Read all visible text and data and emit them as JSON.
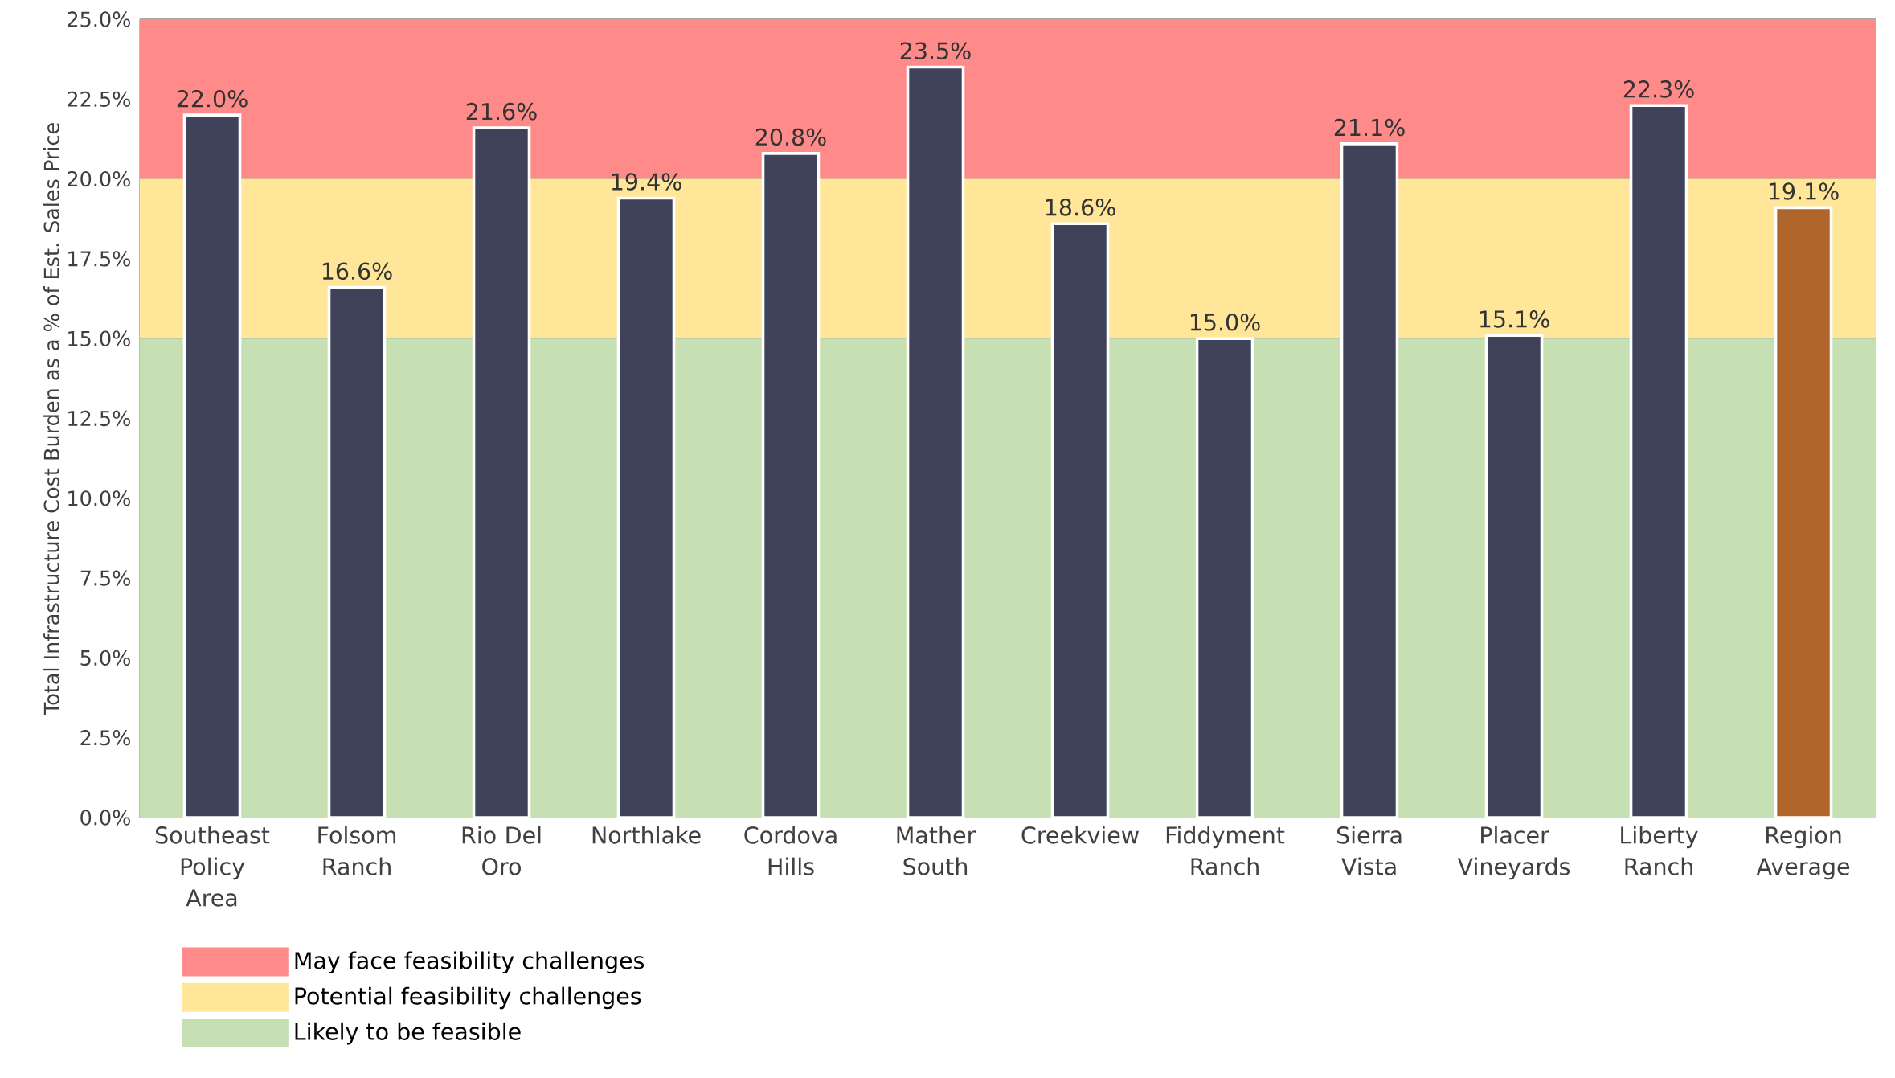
{
  "chart_data": {
    "type": "bar",
    "ylabel": "Total Infrastructure  Cost Burden as a % of Est. Sales Price",
    "categories": [
      "Southeast Policy Area",
      "Folsom Ranch",
      "Rio Del Oro",
      "Northlake",
      "Cordova Hills",
      "Mather South",
      "Creekview",
      "Fiddyment Ranch",
      "Sierra Vista",
      "Placer Vineyards",
      "Liberty Ranch",
      "Region Average"
    ],
    "values": [
      22.0,
      16.6,
      21.6,
      19.4,
      20.8,
      23.5,
      18.6,
      15.0,
      21.1,
      15.1,
      22.3,
      19.1
    ],
    "colors": [
      "#3f4359",
      "#3f4359",
      "#3f4359",
      "#3f4359",
      "#3f4359",
      "#3f4359",
      "#3f4359",
      "#3f4359",
      "#3f4359",
      "#3f4359",
      "#3f4359",
      "#b0652a"
    ],
    "value_labels": [
      "22.0%",
      "16.6%",
      "21.6%",
      "19.4%",
      "20.8%",
      "23.5%",
      "18.6%",
      "15.0%",
      "21.1%",
      "15.1%",
      "22.3%",
      "19.1%"
    ],
    "ylim": [
      0,
      25
    ],
    "yticks": [
      {
        "value": 0,
        "label": "0.0%"
      },
      {
        "value": 2.5,
        "label": "2.5%"
      },
      {
        "value": 5,
        "label": "5.0%"
      },
      {
        "value": 7.5,
        "label": "7.5%"
      },
      {
        "value": 10,
        "label": "10.0%"
      },
      {
        "value": 12.5,
        "label": "12.5%"
      },
      {
        "value": 15,
        "label": "15.0%"
      },
      {
        "value": 17.5,
        "label": "17.5%"
      },
      {
        "value": 20,
        "label": "20.0%"
      },
      {
        "value": 22.5,
        "label": "22.5%"
      },
      {
        "value": 25,
        "label": "25.0%"
      }
    ],
    "bands": [
      {
        "axis": "y",
        "from": 20,
        "to": 25,
        "label": "May face feasibility challenges",
        "color": "#ff8a8a"
      },
      {
        "axis": "y",
        "from": 15,
        "to": 20,
        "label": "Potential feasibility challenges",
        "color": "#ffe699"
      },
      {
        "axis": "y",
        "from": 0,
        "to": 15,
        "label": "Likely to be feasible",
        "color": "#c6e0b4"
      }
    ],
    "grid": "y",
    "legend": "bottom left"
  }
}
